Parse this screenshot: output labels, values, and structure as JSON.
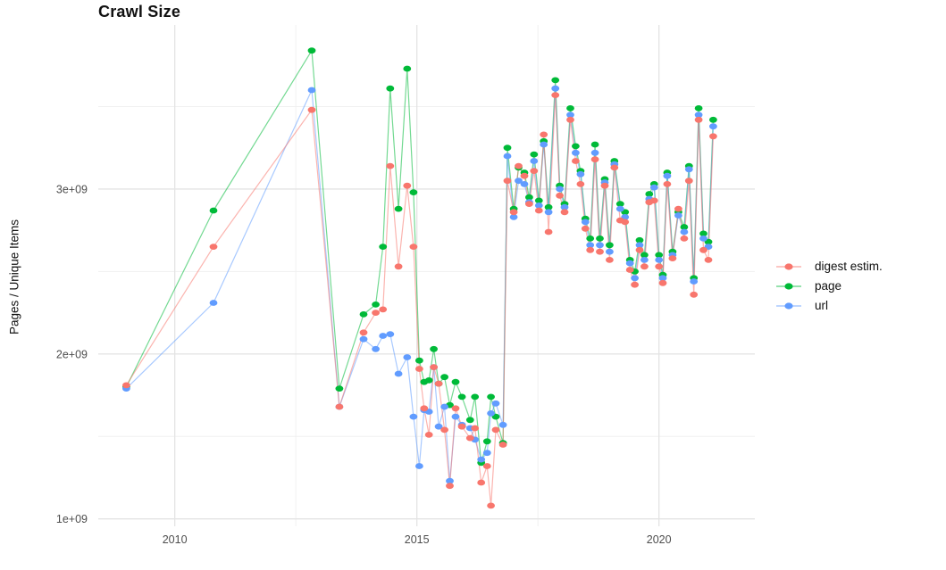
{
  "title": "Crawl Size",
  "ylabel": "Pages / Unique Items",
  "legend": {
    "position": "right",
    "items": [
      {
        "label": "digest estim.",
        "color": "#F8766D"
      },
      {
        "label": "page",
        "color": "#00BA38"
      },
      {
        "label": "url",
        "color": "#619CFF"
      }
    ]
  },
  "colors": {
    "background": "#ffffff",
    "grid_major": "#e4e4e4",
    "grid_minor": "#f0f0f0",
    "tick_label": "#4d4d4d",
    "digest": "#F8766D",
    "page": "#00BA38",
    "url": "#619CFF"
  },
  "chart_data": {
    "type": "line",
    "title": "Crawl Size",
    "xlabel": "",
    "ylabel": "Pages / Unique Items",
    "x_unit": "calendar year (decimal, one point per crawl)",
    "y_unit": "pages / unique items, value × 1e9",
    "grid": true,
    "legend_position": "right",
    "xlim": [
      2008.42,
      2021.98
    ],
    "ylim": [
      0.955,
      3.995
    ],
    "x_major_ticks": [
      2010,
      2015,
      2020
    ],
    "x_minor_gridlines": [
      2012.5,
      2017.5
    ],
    "y_major_ticks": [
      {
        "value": 1,
        "label": "1e+09"
      },
      {
        "value": 2,
        "label": "2e+09"
      },
      {
        "value": 3,
        "label": "3e+09"
      }
    ],
    "y_minor_gridlines": [
      1.5,
      2.5,
      3.5
    ],
    "x": [
      2009.0,
      2010.8,
      2012.83,
      2013.4,
      2013.9,
      2014.15,
      2014.3,
      2014.45,
      2014.62,
      2014.8,
      2014.93,
      2015.05,
      2015.15,
      2015.25,
      2015.35,
      2015.45,
      2015.57,
      2015.68,
      2015.8,
      2015.93,
      2016.1,
      2016.2,
      2016.33,
      2016.45,
      2016.53,
      2016.63,
      2016.78,
      2016.87,
      2017.0,
      2017.1,
      2017.22,
      2017.32,
      2017.42,
      2017.52,
      2017.62,
      2017.72,
      2017.86,
      2017.95,
      2018.05,
      2018.17,
      2018.28,
      2018.38,
      2018.48,
      2018.58,
      2018.68,
      2018.78,
      2018.88,
      2018.98,
      2019.08,
      2019.2,
      2019.3,
      2019.4,
      2019.5,
      2019.6,
      2019.7,
      2019.8,
      2019.9,
      2020.0,
      2020.08,
      2020.17,
      2020.28,
      2020.4,
      2020.52,
      2020.62,
      2020.72,
      2020.82,
      2020.92,
      2021.02,
      2021.12
    ],
    "series": [
      {
        "name": "digest estim.",
        "color": "#F8766D",
        "values": [
          1.81,
          2.65,
          3.48,
          1.68,
          2.13,
          2.25,
          2.27,
          3.14,
          2.53,
          3.02,
          2.65,
          1.91,
          1.67,
          1.51,
          1.92,
          1.82,
          1.54,
          1.2,
          1.67,
          1.56,
          1.49,
          1.55,
          1.22,
          1.32,
          1.08,
          1.54,
          1.45,
          3.05,
          2.86,
          3.14,
          3.08,
          2.91,
          3.11,
          2.87,
          3.33,
          2.74,
          3.57,
          2.96,
          2.86,
          3.42,
          3.17,
          3.03,
          2.76,
          2.63,
          3.18,
          2.62,
          3.02,
          2.57,
          3.13,
          2.81,
          2.8,
          2.51,
          2.42,
          2.63,
          2.53,
          2.92,
          2.93,
          2.53,
          2.43,
          3.03,
          2.58,
          2.88,
          2.7,
          3.05,
          2.36,
          3.42,
          2.63,
          2.57,
          3.32
        ]
      },
      {
        "name": "page",
        "color": "#00BA38",
        "values": [
          1.8,
          2.87,
          3.84,
          1.79,
          2.24,
          2.3,
          2.65,
          3.61,
          2.88,
          3.73,
          2.98,
          1.96,
          1.83,
          1.84,
          2.03,
          1.82,
          1.86,
          1.69,
          1.83,
          1.74,
          1.6,
          1.74,
          1.34,
          1.47,
          1.74,
          1.62,
          1.46,
          3.25,
          2.88,
          3.13,
          3.1,
          2.95,
          3.21,
          2.93,
          3.29,
          2.89,
          3.66,
          3.02,
          2.91,
          3.49,
          3.26,
          3.11,
          2.82,
          2.7,
          3.27,
          2.7,
          3.06,
          2.66,
          3.17,
          2.91,
          2.86,
          2.57,
          2.5,
          2.69,
          2.6,
          2.97,
          3.03,
          2.6,
          2.48,
          3.1,
          2.62,
          2.86,
          2.77,
          3.14,
          2.46,
          3.49,
          2.73,
          2.68,
          3.42
        ]
      },
      {
        "name": "url",
        "color": "#619CFF",
        "values": [
          1.79,
          2.31,
          3.6,
          1.68,
          2.09,
          2.03,
          2.11,
          2.12,
          1.88,
          1.98,
          1.62,
          1.32,
          1.66,
          1.65,
          1.92,
          1.56,
          1.68,
          1.23,
          1.62,
          1.57,
          1.55,
          1.48,
          1.36,
          1.4,
          1.64,
          1.7,
          1.57,
          3.2,
          2.83,
          3.05,
          3.03,
          2.92,
          3.17,
          2.9,
          3.27,
          2.86,
          3.61,
          3.0,
          2.89,
          3.45,
          3.22,
          3.09,
          2.8,
          2.66,
          3.22,
          2.66,
          3.04,
          2.62,
          3.15,
          2.88,
          2.83,
          2.55,
          2.46,
          2.66,
          2.57,
          2.94,
          3.01,
          2.57,
          2.46,
          3.08,
          2.6,
          2.84,
          2.74,
          3.12,
          2.44,
          3.45,
          2.7,
          2.65,
          3.38
        ]
      }
    ]
  }
}
